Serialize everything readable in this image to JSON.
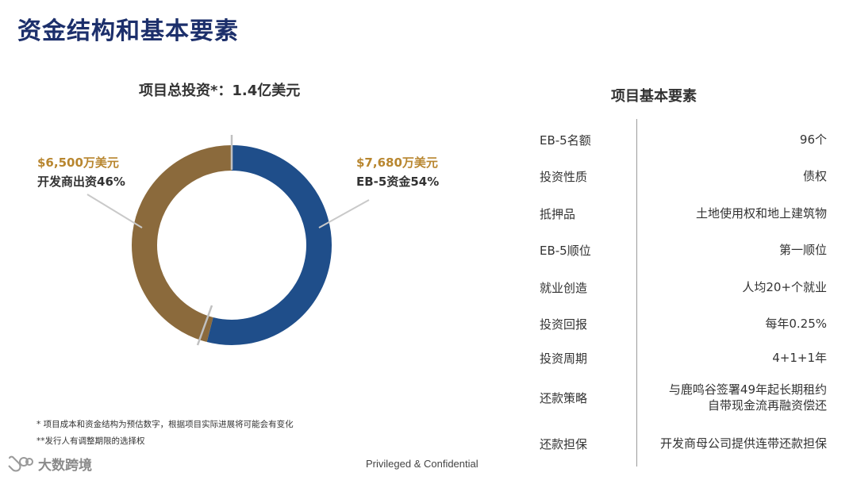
{
  "page": {
    "title": "资金结构和基本要素",
    "confidential": "Privileged & Confidential",
    "watermark": "大数跨境"
  },
  "chart_data": {
    "type": "pie",
    "title": "项目总投资*：1.4亿美元",
    "slices": [
      {
        "amount": "$7,680万美元",
        "label": "EB-5资金54%",
        "value": 54,
        "color": "#1f4e8a"
      },
      {
        "amount": "$6,500万美元",
        "label": "开发商出资46%",
        "value": 46,
        "color": "#8b6a3c"
      }
    ]
  },
  "footnotes": [
    "* 项目成本和资金结构为预估数字，根据项目实际进展将可能会有变化",
    "**发行人有调整期限的选择权"
  ],
  "elements_table": {
    "title": "项目基本要素",
    "rows": [
      {
        "label": "EB-5名额",
        "value": "96个"
      },
      {
        "label": "投资性质",
        "value": "债权"
      },
      {
        "label": "抵押品",
        "value": "土地使用权和地上建筑物"
      },
      {
        "label": "EB-5顺位",
        "value": "第一顺位"
      },
      {
        "label": "就业创造",
        "value": "人均20+个就业"
      },
      {
        "label": "投资回报",
        "value": "每年0.25%"
      },
      {
        "label": "投资周期",
        "value": "4+1+1年"
      },
      {
        "label": "还款策略",
        "value": "与鹿鸣谷签署49年起长期租约",
        "value2": "自带现金流再融资偿还"
      },
      {
        "label": "还款担保",
        "value": "开发商母公司提供连带还款担保"
      }
    ]
  }
}
